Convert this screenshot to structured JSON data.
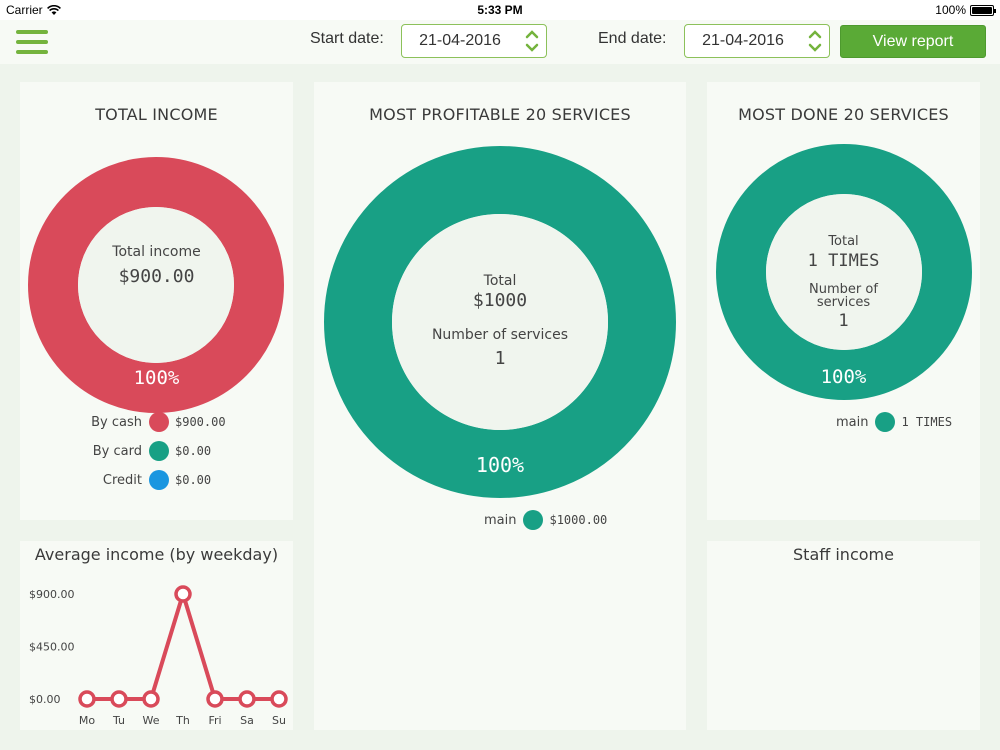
{
  "status_bar": {
    "carrier": "Carrier",
    "time": "5:33 PM",
    "battery": "100%"
  },
  "toolbar": {
    "start_label": "Start date:",
    "start_value": "21-04-2016",
    "end_label": "End date:",
    "end_value": "21-04-2016",
    "view_button": "View report"
  },
  "colors": {
    "red": "#d94a5a",
    "teal": "#18a085",
    "blue": "#1a96e0",
    "green_accent": "#5aaa36",
    "card_bg": "#f7faf5",
    "page_bg": "#eef4ec"
  },
  "total_income": {
    "title": "TOTAL INCOME",
    "center_label": "Total income",
    "center_value": "$900.00",
    "percent": "100%",
    "legend": [
      {
        "label": "By cash",
        "value": "$900.00",
        "color": "#d94a5a"
      },
      {
        "label": "By card",
        "value": "$0.00",
        "color": "#18a085"
      },
      {
        "label": "Credit",
        "value": "$0.00",
        "color": "#1a96e0"
      }
    ]
  },
  "profitable": {
    "title": "MOST PROFITABLE 20 SERVICES",
    "center_total_label": "Total",
    "center_total_value": "$1000",
    "center_count_label": "Number of services",
    "center_count_value": "1",
    "percent": "100%",
    "legend": [
      {
        "label": "main",
        "value": "$1000.00",
        "color": "#18a085"
      }
    ]
  },
  "most_done": {
    "title": "MOST DONE 20 SERVICES",
    "center_total_label": "Total",
    "center_total_value": "1 TIMES",
    "center_count_label_1": "Number of",
    "center_count_label_2": "services",
    "center_count_value": "1",
    "percent": "100%",
    "legend": [
      {
        "label": "main",
        "value": "1 TIMES",
        "color": "#18a085"
      }
    ]
  },
  "average_income": {
    "title": "Average income (by weekday)",
    "chart_data": {
      "type": "line",
      "categories": [
        "Mo",
        "Tu",
        "We",
        "Th",
        "Fri",
        "Sa",
        "Su"
      ],
      "series": [
        {
          "values": [
            0,
            0,
            0,
            900,
            0,
            0,
            0
          ]
        }
      ],
      "ytick_labels": [
        "$900.00",
        "$450.00",
        "$0.00"
      ],
      "yticks": [
        900,
        450,
        0
      ],
      "ylim": [
        0,
        900
      ],
      "color": "#d94a5a",
      "grid": false
    }
  },
  "staff_income": {
    "title": "Staff income"
  }
}
